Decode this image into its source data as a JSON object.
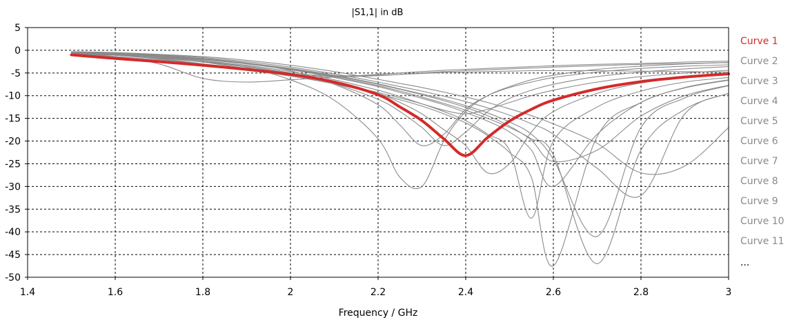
{
  "chart_data": {
    "type": "line",
    "title": "|S1,1| in dB",
    "xlabel": "Frequency / GHz",
    "ylabel": "",
    "xlim": [
      1.4,
      3.0
    ],
    "ylim": [
      -50,
      5
    ],
    "x_ticks": [
      1.4,
      1.6,
      1.8,
      2,
      2.2,
      2.4,
      2.6,
      2.8,
      3
    ],
    "x_tick_labels": [
      "1.4",
      "1.6",
      "1.8",
      "2",
      "2.2",
      "2.4",
      "2.6",
      "2.8",
      "3"
    ],
    "y_ticks": [
      5,
      0,
      -5,
      -10,
      -15,
      -20,
      -25,
      -30,
      -35,
      -40,
      -45,
      -50
    ],
    "y_tick_labels": [
      "5",
      "0",
      "-5",
      "-10",
      "-15",
      "-20",
      "-25",
      "-30",
      "-35",
      "-40",
      "-45",
      "-50"
    ],
    "grid": true,
    "legend_position": "right",
    "legend_overflow_label": "...",
    "colors": {
      "highlight": "#d42a2a",
      "other": "#8a8a8a",
      "grid": "#000000"
    },
    "x": [
      1.5,
      1.6,
      1.7,
      1.8,
      1.9,
      2.0,
      2.1,
      2.2,
      2.25,
      2.3,
      2.35,
      2.4,
      2.45,
      2.5,
      2.55,
      2.6,
      2.7,
      2.8,
      2.9,
      3.0
    ],
    "series": [
      {
        "name": "Curve 1",
        "highlight": true,
        "values": [
          -1.0,
          -1.8,
          -2.5,
          -3.3,
          -4.2,
          -5.3,
          -7.0,
          -9.8,
          -12.5,
          -15.5,
          -19.5,
          -23.2,
          -19.2,
          -15.6,
          -13.0,
          -11.0,
          -8.5,
          -6.9,
          -5.9,
          -5.2
        ]
      },
      {
        "name": "Curve 2",
        "values": [
          -0.5,
          -0.8,
          -1.3,
          -2.3,
          -3.8,
          -6.5,
          -11.0,
          -19.5,
          -28.0,
          -30.0,
          -20.0,
          -13.5,
          -10.0,
          -8.0,
          -6.5,
          -5.5,
          -4.2,
          -3.5,
          -3.0,
          -2.7
        ]
      },
      {
        "name": "Curve 3",
        "values": [
          -0.4,
          -0.7,
          -1.1,
          -1.8,
          -2.8,
          -4.5,
          -7.5,
          -12.0,
          -16.5,
          -21.0,
          -18.5,
          -13.0,
          -10.0,
          -8.2,
          -7.0,
          -6.0,
          -4.8,
          -4.0,
          -3.5,
          -3.2
        ]
      },
      {
        "name": "Curve 4",
        "values": [
          -0.7,
          -1.1,
          -1.7,
          -2.5,
          -3.5,
          -5.0,
          -7.0,
          -9.5,
          -11.5,
          -14.0,
          -17.5,
          -21.0,
          -27.0,
          -25.0,
          -18.0,
          -13.5,
          -9.5,
          -7.2,
          -6.0,
          -5.2
        ]
      },
      {
        "name": "Curve 5",
        "values": [
          -0.6,
          -1.0,
          -1.5,
          -2.3,
          -3.3,
          -4.7,
          -6.5,
          -8.8,
          -10.2,
          -11.8,
          -13.5,
          -15.5,
          -18.5,
          -22.0,
          -37.0,
          -20.0,
          -12.5,
          -9.0,
          -7.0,
          -6.0
        ]
      },
      {
        "name": "Curve 6",
        "values": [
          -0.5,
          -0.9,
          -1.4,
          -2.1,
          -3.0,
          -4.3,
          -6.0,
          -8.0,
          -9.3,
          -10.6,
          -12.0,
          -13.7,
          -15.6,
          -18.0,
          -22.0,
          -30.0,
          -18.5,
          -11.5,
          -8.2,
          -6.5
        ]
      },
      {
        "name": "Curve 7",
        "values": [
          -0.4,
          -0.8,
          -1.2,
          -1.9,
          -2.8,
          -4.0,
          -5.5,
          -7.4,
          -8.5,
          -9.6,
          -10.8,
          -12.2,
          -13.8,
          -15.8,
          -18.5,
          -24.0,
          -41.0,
          -17.0,
          -10.5,
          -7.8
        ]
      },
      {
        "name": "Curve 8",
        "values": [
          -0.3,
          -0.6,
          -1.0,
          -1.6,
          -2.5,
          -3.7,
          -5.2,
          -7.0,
          -8.0,
          -9.0,
          -10.1,
          -11.3,
          -12.7,
          -14.3,
          -16.2,
          -18.5,
          -26.0,
          -32.0,
          -14.0,
          -9.5
        ]
      },
      {
        "name": "Curve 9",
        "values": [
          -0.3,
          -0.5,
          -0.9,
          -1.4,
          -2.2,
          -3.3,
          -4.7,
          -6.4,
          -7.3,
          -8.2,
          -9.2,
          -10.3,
          -11.5,
          -12.9,
          -14.4,
          -16.2,
          -20.5,
          -27.0,
          -25.5,
          -17.0
        ]
      },
      {
        "name": "Curve 10",
        "values": [
          -0.8,
          -1.4,
          -2.1,
          -3.0,
          -4.1,
          -5.5,
          -7.2,
          -9.3,
          -10.5,
          -11.8,
          -13.2,
          -14.0,
          -13.0,
          -11.5,
          -10.0,
          -8.8,
          -7.0,
          -5.8,
          -5.0,
          -4.4
        ]
      },
      {
        "name": "Curve 11",
        "values": [
          -0.5,
          -0.9,
          -1.3,
          -2.0,
          -2.9,
          -4.2,
          -5.8,
          -7.8,
          -9.0,
          -10.3,
          -11.7,
          -13.2,
          -15.0,
          -17.0,
          -19.5,
          -23.0,
          -47.0,
          -22.0,
          -13.0,
          -9.5
        ]
      },
      {
        "name": "",
        "values": [
          -0.4,
          -1.0,
          -1.8,
          -3.0,
          -4.4,
          -5.5,
          -5.8,
          -5.6,
          -5.3,
          -5.0,
          -4.7,
          -4.5,
          -4.3,
          -4.1,
          -3.9,
          -3.7,
          -3.4,
          -3.1,
          -2.9,
          -2.7
        ]
      },
      {
        "name": "",
        "values": [
          -0.3,
          -0.8,
          -1.5,
          -2.6,
          -4.0,
          -5.2,
          -5.6,
          -5.5,
          -5.3,
          -5.1,
          -4.9,
          -4.8,
          -4.7,
          -4.6,
          -4.5,
          -4.5,
          -4.5,
          -4.6,
          -4.7,
          -4.8
        ]
      },
      {
        "name": "",
        "values": [
          -0.6,
          -1.4,
          -3.0,
          -6.2,
          -7.0,
          -6.5,
          -5.9,
          -5.3,
          -5.0,
          -4.7,
          -4.4,
          -4.2,
          -4.0,
          -3.8,
          -3.6,
          -3.4,
          -3.1,
          -2.9,
          -2.6,
          -2.4
        ]
      },
      {
        "name": "",
        "values": [
          -0.5,
          -1.1,
          -1.9,
          -3.0,
          -4.3,
          -5.7,
          -7.4,
          -9.6,
          -10.9,
          -12.3,
          -14.0,
          -16.0,
          -18.8,
          -22.5,
          -28.0,
          -47.5,
          -19.0,
          -11.5,
          -8.3,
          -6.6
        ]
      },
      {
        "name": "",
        "values": [
          -0.6,
          -1.1,
          -1.7,
          -2.6,
          -3.7,
          -5.2,
          -7.4,
          -10.8,
          -13.5,
          -17.0,
          -21.0,
          -18.0,
          -13.5,
          -10.6,
          -8.8,
          -7.5,
          -5.8,
          -4.8,
          -4.1,
          -3.6
        ]
      },
      {
        "name": "",
        "values": [
          -0.4,
          -0.8,
          -1.3,
          -2.0,
          -2.9,
          -4.1,
          -5.6,
          -7.5,
          -8.6,
          -9.8,
          -11.1,
          -12.6,
          -14.4,
          -16.7,
          -19.8,
          -24.5,
          -22.0,
          -14.5,
          -10.0,
          -7.7
        ]
      }
    ]
  }
}
